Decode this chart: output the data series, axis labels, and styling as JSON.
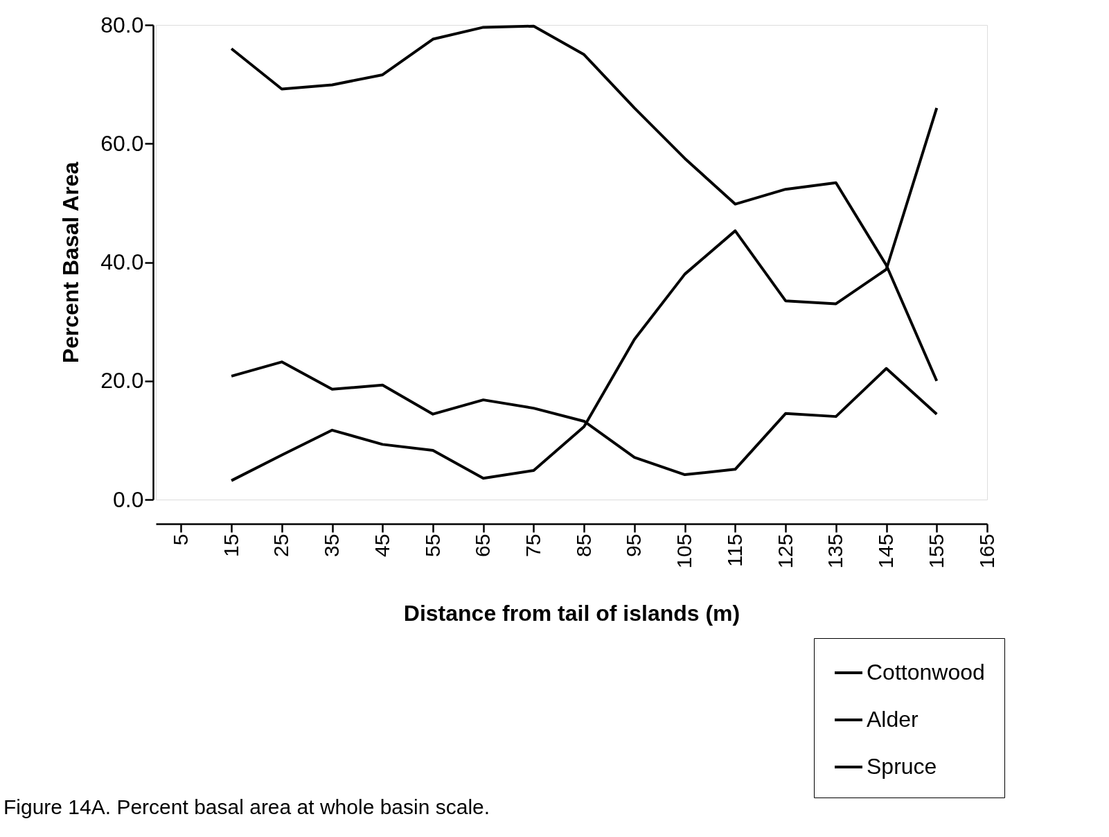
{
  "chart_data": {
    "type": "line",
    "xlabel": "Distance from tail of islands (m)",
    "ylabel": "Percent Basal Area",
    "x": [
      15,
      25,
      35,
      45,
      55,
      65,
      75,
      85,
      95,
      105,
      115,
      125,
      135,
      145,
      155
    ],
    "series": [
      {
        "name": "Cottonwood",
        "color": "#000000",
        "values": [
          76,
          69.2,
          69.9,
          71.6,
          77.6,
          79.6,
          79.8,
          75,
          66,
          57.5,
          49.8,
          52.3,
          53.4,
          39.5,
          20
        ]
      },
      {
        "name": "Alder",
        "color": "#000000",
        "values": [
          20.8,
          23.2,
          18.6,
          19.3,
          14.4,
          16.8,
          15.4,
          13.2,
          7.1,
          4.2,
          5.1,
          14.5,
          14,
          22.1,
          14.4
        ]
      },
      {
        "name": "Spruce",
        "color": "#000000",
        "values": [
          3.2,
          7.5,
          11.7,
          9.3,
          8.3,
          3.6,
          4.9,
          12.3,
          27,
          38,
          45.3,
          33.5,
          33,
          38.8,
          66
        ]
      }
    ],
    "xlim": [
      0,
      165
    ],
    "xticks": [
      5,
      15,
      25,
      35,
      45,
      55,
      65,
      75,
      85,
      95,
      105,
      115,
      125,
      135,
      145,
      155,
      165
    ],
    "ylim": [
      0,
      80
    ],
    "yticks": [
      {
        "value": 0,
        "label": "0.0"
      },
      {
        "value": 20,
        "label": "20.0"
      },
      {
        "value": 40,
        "label": "40.0"
      },
      {
        "value": 60,
        "label": "60.0"
      },
      {
        "value": 80,
        "label": "80.0"
      }
    ],
    "grid": false,
    "legend": "bottom right",
    "annotations": [
      "Figure 14A.  Percent basal area at whole basin scale."
    ]
  }
}
